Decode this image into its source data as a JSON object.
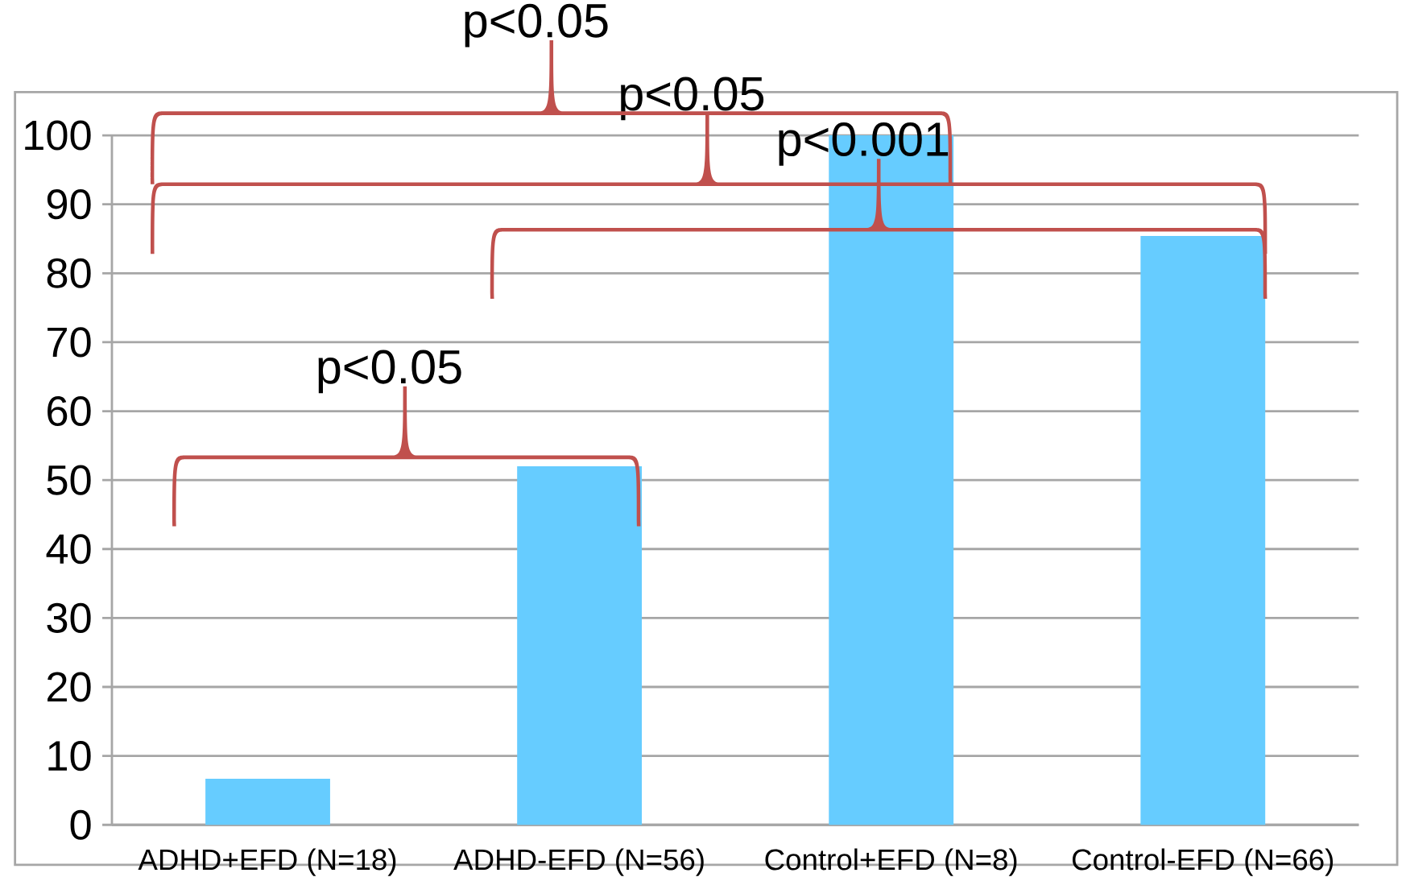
{
  "chart_data": {
    "type": "bar",
    "categories": [
      "ADHD+EFD (N=18)",
      "ADHD-EFD (N=56)",
      "Control+EFD (N=8)",
      "Control-EFD (N=66)"
    ],
    "values": [
      6.7,
      52,
      100,
      85.4
    ],
    "color": "#66ccff",
    "ylim": [
      0,
      100
    ],
    "yticks": [
      0,
      10,
      20,
      30,
      40,
      50,
      60,
      70,
      80,
      90,
      100
    ],
    "grid": "y",
    "annotations": [
      "p<0.05",
      "p<0.05",
      "p<0.001",
      "p<0.05"
    ]
  }
}
